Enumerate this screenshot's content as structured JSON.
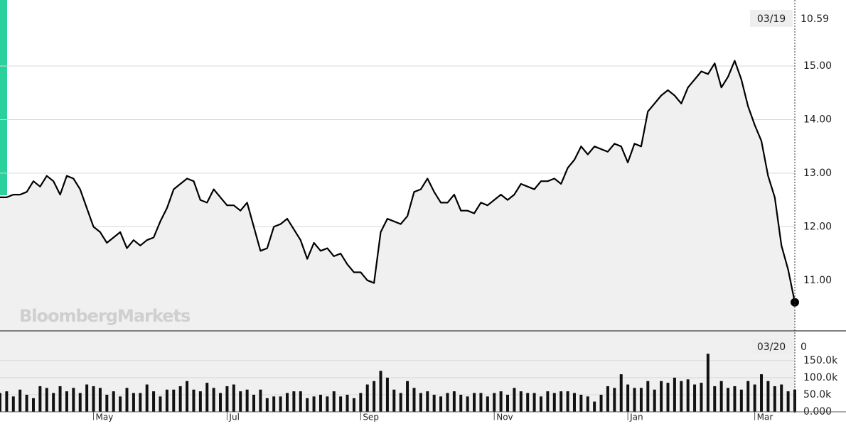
{
  "watermark": "BloombergMarkets",
  "chart_data": [
    {
      "type": "line",
      "color": "#000000",
      "area_color": "#f0f0f0",
      "grid": true,
      "last_label": "03/19",
      "last_value": 10.59,
      "values": [
        12.55,
        12.55,
        12.6,
        12.6,
        12.65,
        12.85,
        12.75,
        12.95,
        12.85,
        12.6,
        12.95,
        12.9,
        12.7,
        12.35,
        12.0,
        11.9,
        11.7,
        11.8,
        11.9,
        11.6,
        11.75,
        11.65,
        11.75,
        11.8,
        12.1,
        12.35,
        12.7,
        12.8,
        12.9,
        12.85,
        12.5,
        12.45,
        12.7,
        12.55,
        12.4,
        12.4,
        12.3,
        12.45,
        12.0,
        11.55,
        11.6,
        12.0,
        12.05,
        12.15,
        11.95,
        11.75,
        11.4,
        11.7,
        11.55,
        11.6,
        11.45,
        11.5,
        11.3,
        11.15,
        11.15,
        11.0,
        10.95,
        11.9,
        12.15,
        12.1,
        12.05,
        12.2,
        12.65,
        12.7,
        12.9,
        12.65,
        12.45,
        12.45,
        12.6,
        12.3,
        12.3,
        12.25,
        12.45,
        12.4,
        12.5,
        12.6,
        12.5,
        12.6,
        12.8,
        12.75,
        12.7,
        12.85,
        12.85,
        12.9,
        12.8,
        13.1,
        13.25,
        13.5,
        13.35,
        13.5,
        13.45,
        13.4,
        13.55,
        13.5,
        13.2,
        13.55,
        13.5,
        14.15,
        14.3,
        14.45,
        14.55,
        14.45,
        14.3,
        14.6,
        14.75,
        14.9,
        14.85,
        15.05,
        14.6,
        14.8,
        15.1,
        14.75,
        14.25,
        13.9,
        13.6,
        12.95,
        12.55,
        11.65,
        11.2,
        10.59
      ],
      "xlim": [
        0,
        119
      ],
      "ylim": [
        10.07,
        16.1
      ],
      "yticks": [
        {
          "value": 11,
          "label": "11.00"
        },
        {
          "value": 12,
          "label": "12.00"
        },
        {
          "value": 13,
          "label": "13.00"
        },
        {
          "value": 14,
          "label": "14.00"
        },
        {
          "value": 15,
          "label": "15.00"
        }
      ]
    },
    {
      "type": "bar",
      "color": "#111111",
      "grid": true,
      "last_label": "03/20",
      "last_value": 0,
      "values": [
        55000,
        60000,
        45000,
        65000,
        50000,
        40000,
        75000,
        70000,
        55000,
        75000,
        60000,
        70000,
        55000,
        80000,
        75000,
        70000,
        50000,
        60000,
        45000,
        70000,
        55000,
        55000,
        80000,
        60000,
        45000,
        65000,
        65000,
        75000,
        90000,
        65000,
        60000,
        85000,
        70000,
        55000,
        75000,
        80000,
        60000,
        65000,
        50000,
        65000,
        40000,
        45000,
        45000,
        55000,
        60000,
        60000,
        40000,
        45000,
        50000,
        45000,
        60000,
        45000,
        50000,
        40000,
        55000,
        80000,
        90000,
        120000,
        100000,
        65000,
        55000,
        90000,
        70000,
        55000,
        60000,
        50000,
        45000,
        55000,
        60000,
        50000,
        45000,
        55000,
        55000,
        45000,
        55000,
        60000,
        50000,
        70000,
        60000,
        55000,
        55000,
        45000,
        60000,
        55000,
        60000,
        60000,
        55000,
        50000,
        45000,
        30000,
        50000,
        75000,
        70000,
        110000,
        80000,
        70000,
        70000,
        90000,
        65000,
        90000,
        85000,
        100000,
        90000,
        95000,
        80000,
        85000,
        170000,
        75000,
        90000,
        70000,
        75000,
        65000,
        90000,
        80000,
        110000,
        90000,
        75000,
        80000,
        60000,
        65000
      ],
      "xlim": [
        0,
        119
      ],
      "xticks": [
        {
          "value": 14,
          "label": "May"
        },
        {
          "value": 34,
          "label": "Jul"
        },
        {
          "value": 54,
          "label": "Sep"
        },
        {
          "value": 74,
          "label": "Nov"
        },
        {
          "value": 94,
          "label": "Jan"
        },
        {
          "value": 113,
          "label": "Mar"
        }
      ],
      "ylim": [
        0,
        235000
      ],
      "yticks": [
        {
          "value": 0,
          "label": "0.000"
        },
        {
          "value": 50000,
          "label": "50.0k"
        },
        {
          "value": 100000,
          "label": "100.0k"
        },
        {
          "value": 150000,
          "label": "150.0k"
        }
      ]
    }
  ]
}
